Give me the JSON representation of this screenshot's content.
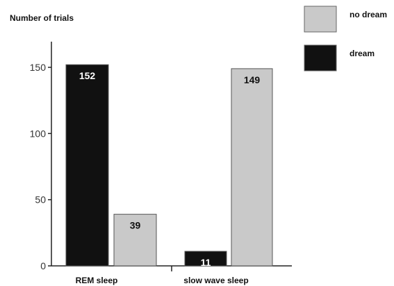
{
  "chart_data": {
    "type": "bar",
    "ylabel": "Number of trials",
    "categories": [
      "REM sleep",
      "slow wave sleep"
    ],
    "series": [
      {
        "name": "dream",
        "values": [
          152,
          11
        ],
        "color": "#111111"
      },
      {
        "name": "no dream",
        "values": [
          39,
          149
        ],
        "color": "#c9c9c9"
      }
    ],
    "yticks": [
      0,
      50,
      100,
      150
    ],
    "ylim": [
      0,
      165
    ],
    "legend": "top-right",
    "legend_order": [
      "no dream",
      "dream"
    ],
    "grid": false
  }
}
